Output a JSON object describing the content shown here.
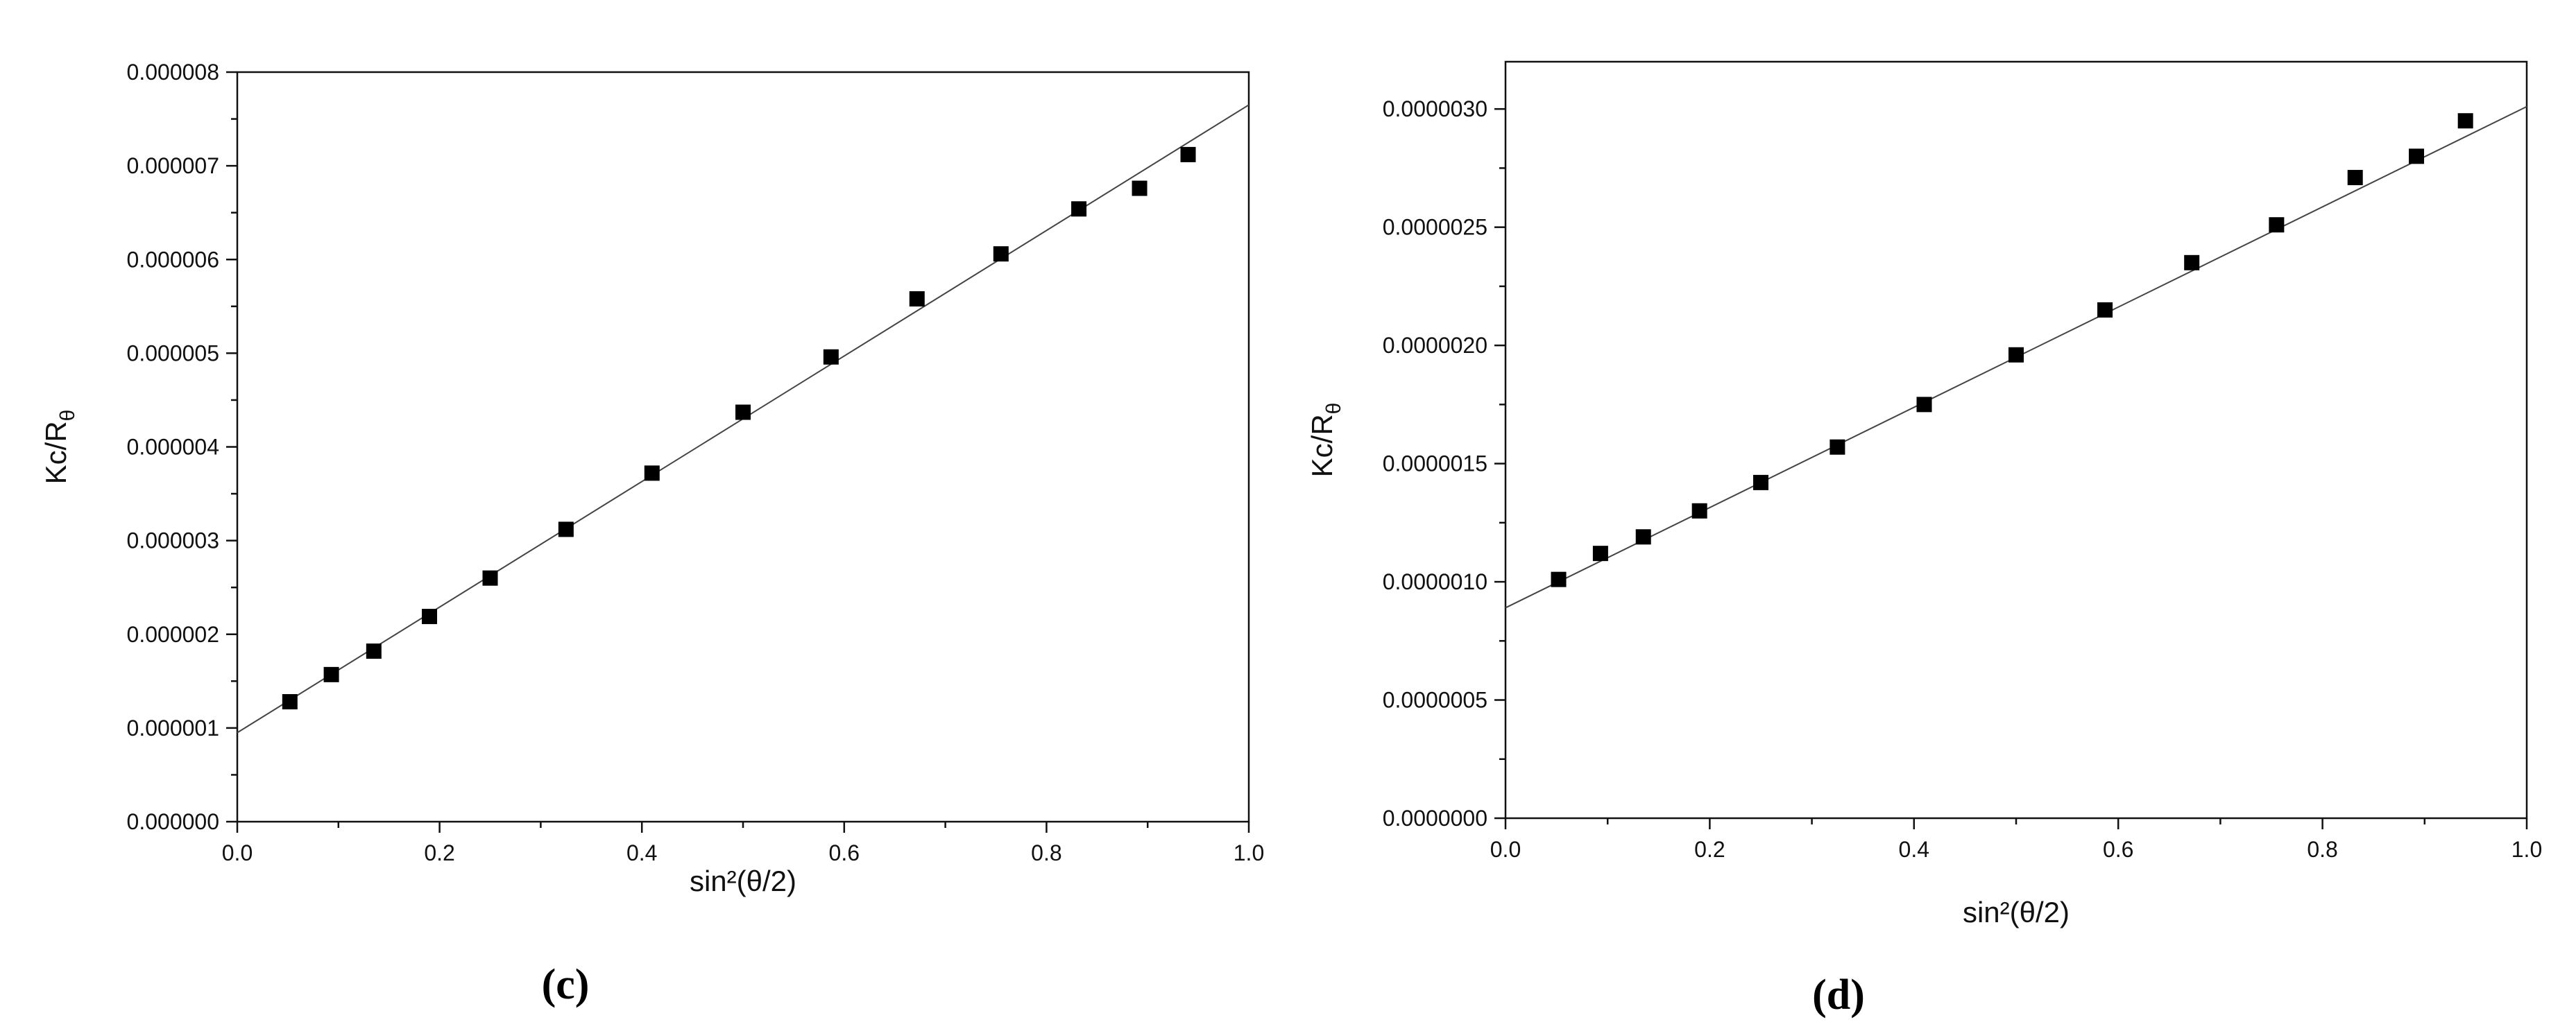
{
  "chart_data": [
    {
      "type": "scatter",
      "panel_label": "(c)",
      "xlabel": "sin²(θ/2)",
      "ylabel_main": "Kc/R",
      "ylabel_sub": "θ",
      "xlim": [
        0.0,
        1.0
      ],
      "ylim": [
        0.0,
        8e-06
      ],
      "x_ticks": [
        "0.0",
        "0.2",
        "0.4",
        "0.6",
        "0.8",
        "1.0"
      ],
      "x_tick_values": [
        0.0,
        0.2,
        0.4,
        0.6,
        0.8,
        1.0
      ],
      "y_ticks": [
        "0.000000",
        "0.000001",
        "0.000002",
        "0.000003",
        "0.000004",
        "0.000005",
        "0.000006",
        "0.000007",
        "0.000008"
      ],
      "y_tick_values": [
        0.0,
        1e-06,
        2e-06,
        3e-06,
        4e-06,
        5e-06,
        6e-06,
        7e-06,
        8e-06
      ],
      "fit_line": {
        "x": [
          0.0,
          1.0
        ],
        "y": [
          9.5e-07,
          7.65e-06
        ]
      },
      "points": [
        {
          "x": 0.052,
          "y": 1.28e-06
        },
        {
          "x": 0.093,
          "y": 1.57e-06
        },
        {
          "x": 0.135,
          "y": 1.82e-06
        },
        {
          "x": 0.19,
          "y": 2.19e-06
        },
        {
          "x": 0.25,
          "y": 2.6e-06
        },
        {
          "x": 0.325,
          "y": 3.12e-06
        },
        {
          "x": 0.41,
          "y": 3.72e-06
        },
        {
          "x": 0.5,
          "y": 4.37e-06
        },
        {
          "x": 0.587,
          "y": 4.96e-06
        },
        {
          "x": 0.672,
          "y": 5.58e-06
        },
        {
          "x": 0.755,
          "y": 6.06e-06
        },
        {
          "x": 0.832,
          "y": 6.54e-06
        },
        {
          "x": 0.892,
          "y": 6.76e-06
        },
        {
          "x": 0.94,
          "y": 7.12e-06
        }
      ]
    },
    {
      "type": "scatter",
      "panel_label": "(d)",
      "xlabel": "sin²(θ/2)",
      "ylabel_main": "Kc/R",
      "ylabel_sub": "θ",
      "xlim": [
        0.0,
        1.0
      ],
      "ylim": [
        0.0,
        3.2e-06
      ],
      "x_ticks": [
        "0.0",
        "0.2",
        "0.4",
        "0.6",
        "0.8",
        "1.0"
      ],
      "x_tick_values": [
        0.0,
        0.2,
        0.4,
        0.6,
        0.8,
        1.0
      ],
      "y_ticks": [
        "0.0000000",
        "0.0000005",
        "0.0000010",
        "0.0000015",
        "0.0000020",
        "0.0000025",
        "0.0000030"
      ],
      "y_tick_values": [
        0.0,
        5e-07,
        1e-06,
        1.5e-06,
        2e-06,
        2.5e-06,
        3e-06
      ],
      "fit_line": {
        "x": [
          0.0,
          1.0
        ],
        "y": [
          8.9e-07,
          3.01e-06
        ]
      },
      "points": [
        {
          "x": 0.052,
          "y": 1.01e-06
        },
        {
          "x": 0.093,
          "y": 1.12e-06
        },
        {
          "x": 0.135,
          "y": 1.19e-06
        },
        {
          "x": 0.19,
          "y": 1.3e-06
        },
        {
          "x": 0.25,
          "y": 1.42e-06
        },
        {
          "x": 0.325,
          "y": 1.57e-06
        },
        {
          "x": 0.41,
          "y": 1.75e-06
        },
        {
          "x": 0.5,
          "y": 1.96e-06
        },
        {
          "x": 0.587,
          "y": 2.15e-06
        },
        {
          "x": 0.672,
          "y": 2.35e-06
        },
        {
          "x": 0.755,
          "y": 2.51e-06
        },
        {
          "x": 0.832,
          "y": 2.71e-06
        },
        {
          "x": 0.892,
          "y": 2.8e-06
        },
        {
          "x": 0.94,
          "y": 2.95e-06
        }
      ]
    }
  ]
}
